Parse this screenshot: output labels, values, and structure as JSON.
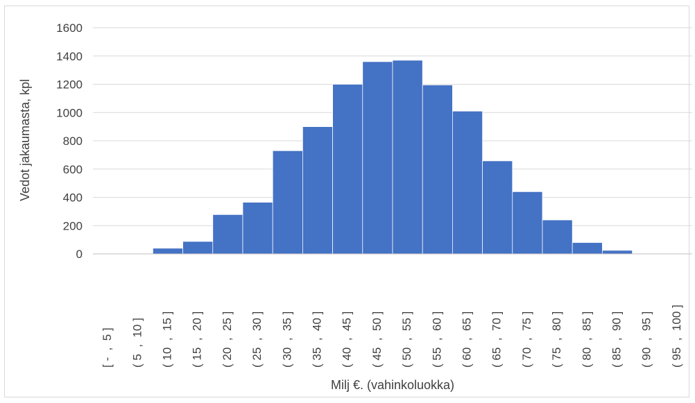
{
  "chart_data": {
    "type": "bar",
    "title": "",
    "xlabel": "Milj €. (vahinkoluokka)",
    "ylabel": "Vedot jakaumasta, kpl",
    "ylim": [
      0,
      1600
    ],
    "yticks": [
      0,
      200,
      400,
      600,
      800,
      1000,
      1200,
      1400,
      1600
    ],
    "grid": true,
    "legend": "none",
    "bar_color": "#4472C4",
    "categories": [
      "[ -  ,  5 ]",
      "( 5  ,  10 ]",
      "( 10  ,  15 ]",
      "( 15  ,  20 ]",
      "( 20  ,  25 ]",
      "( 25  ,  30 ]",
      "( 30  ,  35 ]",
      "( 35  ,  40 ]",
      "( 40  ,  45 ]",
      "( 45  ,  50 ]",
      "( 50  ,  55 ]",
      "( 55  ,  60 ]",
      "( 60  ,  65 ]",
      "( 65  ,  70 ]",
      "( 70  ,  75 ]",
      "( 75  ,  80 ]",
      "( 80  ,  85 ]",
      "( 85  ,  90 ]",
      "( 90  ,  95 ]",
      "( 95  ,  100 ]"
    ],
    "values": [
      0,
      0,
      40,
      88,
      278,
      365,
      730,
      900,
      1200,
      1360,
      1370,
      1195,
      1010,
      658,
      440,
      240,
      80,
      25,
      0,
      0
    ]
  }
}
